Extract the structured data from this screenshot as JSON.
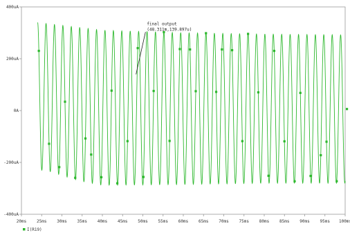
{
  "chart_data": {
    "type": "line",
    "title": "",
    "xlabel": "",
    "ylabel": "",
    "xlim": [
      20,
      100
    ],
    "ylim": [
      -400,
      400
    ],
    "x_unit": "ms",
    "y_unit": "uA",
    "x_ticks": [
      20,
      25,
      30,
      35,
      40,
      45,
      50,
      55,
      60,
      65,
      70,
      75,
      80,
      85,
      90,
      95,
      100
    ],
    "x_tick_labels": [
      "20ms",
      "25ms",
      "30ms",
      "35ms",
      "40ms",
      "45ms",
      "50ms",
      "55ms",
      "60ms",
      "65ms",
      "70ms",
      "75ms",
      "80ms",
      "85ms",
      "90ms",
      "95ms",
      "100ms"
    ],
    "y_ticks": [
      -400,
      -200,
      0,
      200,
      400
    ],
    "y_tick_labels": [
      "-400uA",
      "-200uA",
      "0A",
      "200uA",
      "400uA"
    ],
    "grid": false,
    "legend_position": "bottom-left",
    "series": [
      {
        "name": "I(R19)",
        "color": "#2db82d",
        "start_ms": 24,
        "end_ms": 100,
        "cycle_ms": 2.08,
        "upper_envelope": [
          [
            24,
            340
          ],
          [
            40,
            310
          ],
          [
            60,
            300
          ],
          [
            80,
            295
          ],
          [
            100,
            292
          ]
        ],
        "lower_envelope": [
          [
            26,
            -230
          ],
          [
            34,
            -270
          ],
          [
            40,
            -288
          ],
          [
            60,
            -285
          ],
          [
            80,
            -280
          ],
          [
            100,
            -280
          ]
        ]
      }
    ],
    "annotations": [
      {
        "line1": "final output",
        "line2": "(48.311m,139.897u)",
        "point": [
          48.311,
          139.897
        ],
        "label_anchor": [
          51,
          330
        ]
      }
    ]
  }
}
